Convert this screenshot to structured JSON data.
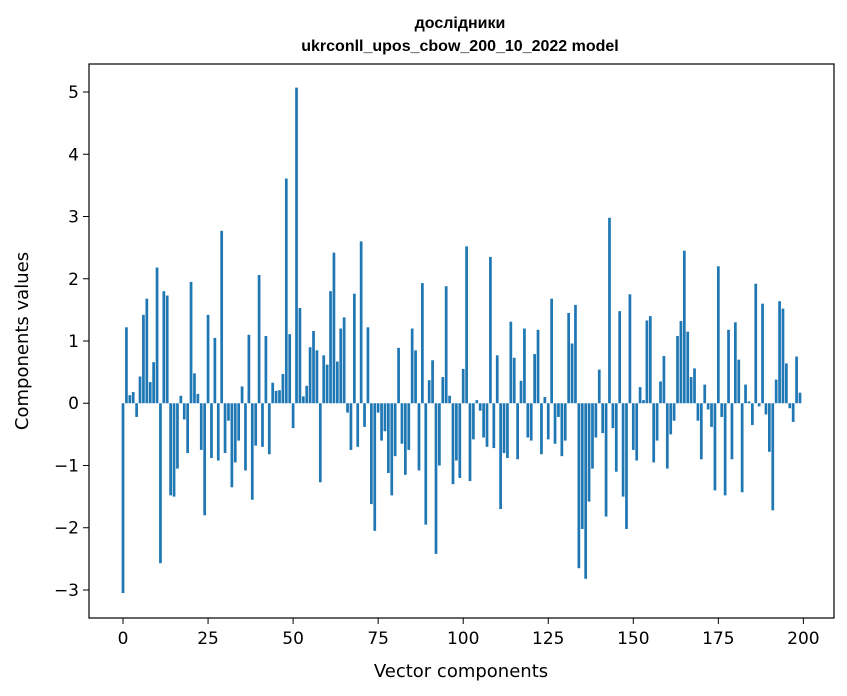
{
  "chart_data": {
    "type": "bar",
    "title_line1": "дослідники",
    "title_line2": "ukrconll_upos_cbow_200_10_2022 model",
    "xlabel": "Vector components",
    "ylabel": "Components values",
    "xlim": [
      -10,
      209
    ],
    "ylim": [
      -3.45,
      5.45
    ],
    "xticks": [
      0,
      25,
      50,
      75,
      100,
      125,
      150,
      175,
      200
    ],
    "yticks": [
      -3,
      -2,
      -1,
      0,
      1,
      2,
      3,
      4,
      5
    ],
    "xtick_labels": [
      "0",
      "25",
      "50",
      "75",
      "100",
      "125",
      "150",
      "175",
      "200"
    ],
    "ytick_labels": [
      "−3",
      "−2",
      "−1",
      "0",
      "1",
      "2",
      "3",
      "4",
      "5"
    ],
    "bar_color": "#1f77b4",
    "values": [
      -3.05,
      1.22,
      0.13,
      0.18,
      -0.22,
      0.43,
      1.42,
      1.68,
      0.34,
      0.66,
      2.18,
      -2.57,
      1.8,
      1.73,
      -1.48,
      -1.5,
      -1.05,
      0.12,
      -0.26,
      -0.8,
      1.95,
      0.48,
      0.15,
      -0.75,
      -1.8,
      1.42,
      -0.88,
      1.05,
      -0.92,
      2.77,
      -0.8,
      -0.28,
      -1.35,
      -0.95,
      -0.6,
      0.27,
      -1.08,
      1.1,
      -1.55,
      -0.68,
      2.06,
      -0.7,
      1.08,
      -0.82,
      0.33,
      0.2,
      0.21,
      0.47,
      3.61,
      1.11,
      -0.4,
      5.07,
      1.53,
      0.11,
      0.28,
      0.9,
      1.16,
      0.85,
      -1.27,
      0.77,
      0.62,
      1.8,
      2.42,
      0.67,
      1.2,
      1.38,
      -0.15,
      -0.75,
      1.76,
      -0.7,
      2.6,
      -0.38,
      1.22,
      -1.62,
      -2.05,
      -0.15,
      -0.6,
      -0.45,
      -1.12,
      -1.48,
      -0.85,
      0.89,
      -0.65,
      -1.15,
      -0.75,
      1.2,
      0.85,
      -1.08,
      1.93,
      -1.95,
      0.37,
      0.69,
      -2.42,
      -1.0,
      0.42,
      1.88,
      0.12,
      -1.3,
      -0.92,
      -1.2,
      0.55,
      2.52,
      -1.25,
      -0.58,
      0.05,
      -0.12,
      -0.55,
      -0.7,
      2.35,
      -0.72,
      0.77,
      -1.7,
      -0.8,
      -0.88,
      1.31,
      0.73,
      -0.9,
      0.36,
      1.2,
      -0.55,
      -0.6,
      0.79,
      1.18,
      -0.82,
      0.1,
      -0.58,
      1.68,
      -0.65,
      -0.22,
      -0.85,
      -0.6,
      1.45,
      0.96,
      1.58,
      -2.65,
      -2.02,
      -2.82,
      -1.58,
      -1.05,
      -0.55,
      0.54,
      -0.48,
      -1.82,
      2.98,
      -0.4,
      -1.1,
      1.48,
      -1.5,
      -2.02,
      1.75,
      -0.75,
      -0.92,
      0.26,
      0.05,
      1.33,
      1.4,
      -0.95,
      -0.6,
      0.35,
      0.76,
      -1.05,
      -0.5,
      -0.28,
      1.08,
      1.32,
      2.45,
      1.15,
      0.42,
      0.56,
      -0.28,
      -0.9,
      0.3,
      -0.1,
      -0.38,
      -1.4,
      2.2,
      -0.22,
      -1.48,
      1.18,
      -0.9,
      1.3,
      0.7,
      -1.43,
      0.3,
      0.03,
      -0.35,
      1.92,
      -0.05,
      1.6,
      -0.18,
      -0.78,
      -1.72,
      0.38,
      1.64,
      1.52,
      0.64,
      -0.08,
      -0.3,
      0.75,
      0.17
    ]
  }
}
